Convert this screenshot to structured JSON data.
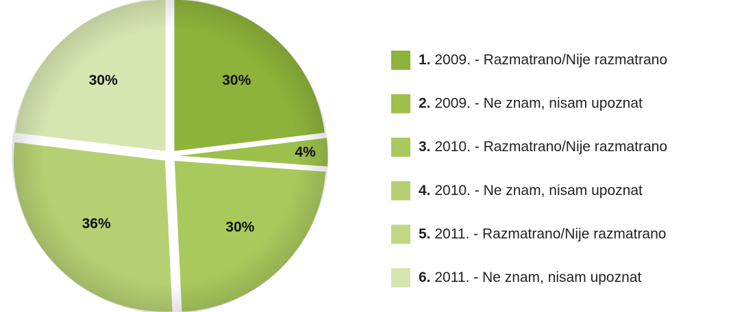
{
  "chart_data": {
    "type": "pie",
    "categories": [
      "1. 2009. - Razmatrano/Nije razmatrano",
      "2. 2009. - Ne znam, nisam upoznat",
      "3. 2010. - Razmatrano/Nije razmatrano",
      "4. 2010. - Ne znam, nisam upoznat",
      "5. 2011. - Razmatrano/Nije razmatrano",
      "6. 2011. - Ne znam, nisam upoznat"
    ],
    "values": [
      30,
      4,
      30,
      36,
      0,
      30
    ],
    "value_labels": [
      "30%",
      "4%",
      "30%",
      "36%",
      null,
      "30%"
    ],
    "colors": [
      "#8db33a",
      "#9cc04a",
      "#a9c95d",
      "#b5d072",
      "#c2d887",
      "#d7e5b0"
    ]
  }
}
